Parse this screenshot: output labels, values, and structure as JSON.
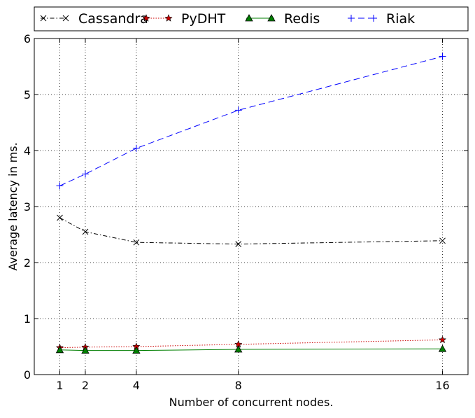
{
  "chart_data": {
    "type": "line",
    "title": "",
    "xlabel": "Number of concurrent nodes.",
    "ylabel": "Average latency in ms.",
    "x": [
      1,
      2,
      4,
      8,
      16
    ],
    "xticks": [
      1,
      2,
      4,
      8,
      16
    ],
    "xlim": [
      0,
      17
    ],
    "ylim": [
      0,
      6
    ],
    "yticks": [
      0,
      1,
      2,
      3,
      4,
      5,
      6
    ],
    "grid": true,
    "legend_position": "top",
    "series": [
      {
        "name": "Cassandra",
        "values": [
          2.8,
          2.55,
          2.36,
          2.33,
          2.39
        ],
        "color": "#000000",
        "line_style": "dash-dot",
        "marker": "x"
      },
      {
        "name": "PyDHT",
        "values": [
          0.48,
          0.49,
          0.5,
          0.54,
          0.62
        ],
        "color": "#cc0000",
        "line_style": "dotted",
        "marker": "star"
      },
      {
        "name": "Redis",
        "values": [
          0.44,
          0.43,
          0.43,
          0.45,
          0.46
        ],
        "color": "#007f00",
        "line_style": "solid",
        "marker": "triangle"
      },
      {
        "name": "Riak",
        "values": [
          3.37,
          3.58,
          4.04,
          4.72,
          5.68
        ],
        "color": "#0000ff",
        "line_style": "dashed",
        "marker": "plus"
      }
    ]
  }
}
